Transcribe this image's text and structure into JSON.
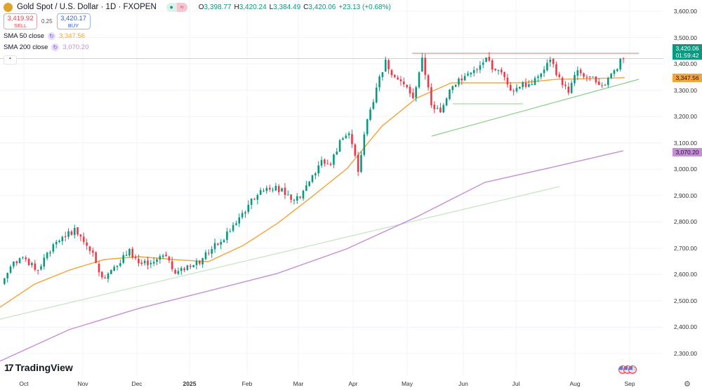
{
  "header": {
    "symbol": "Gold Spot / U.S. Dollar · 1D · FXOPEN",
    "status_dot": "●",
    "status_wave": "≈",
    "open_label": "O",
    "open": "3,398.77",
    "high_label": "H",
    "high": "3,420.24",
    "low_label": "L",
    "low": "3,384.49",
    "close_label": "C",
    "close": "3,420.06",
    "change": "+23.13 (+0.68%)"
  },
  "trade": {
    "sell_price": "3,419.92",
    "sell_label": "SELL",
    "spread": "0.25",
    "buy_price": "3,420.17",
    "buy_label": "BUY"
  },
  "indicators": [
    {
      "label": "SMA 50 close",
      "value": "3,347.56",
      "color": "#f2a33a"
    },
    {
      "label": "SMA 200 close",
      "value": "3,070.20",
      "color": "#c38fd4"
    }
  ],
  "collapse_icon": "⌃",
  "price_tags": {
    "last_price": "3,420.06",
    "countdown": "01:59:42",
    "last_color": "#089981",
    "sma50": "3,347.56",
    "sma50_color": "#f7a33a",
    "sma200": "3,070.20",
    "sma200_color": "#c48fd6"
  },
  "brand": {
    "mark": "17",
    "name": "TradingView"
  },
  "settings_icon": "⚙",
  "chart_data": {
    "type": "candlestick",
    "price_axis": [
      "3,600.00",
      "3,500.00",
      "3,400.00",
      "3,300.00",
      "3,200.00",
      "3,100.00",
      "3,000.00",
      "2,900.00",
      "2,800.00",
      "2,700.00",
      "2,600.00",
      "2,500.00",
      "2,400.00",
      "2,300.00"
    ],
    "ylim": [
      2300,
      3600
    ],
    "time_axis": [
      "Oct",
      "Nov",
      "Dec",
      "2025",
      "Feb",
      "Mar",
      "Apr",
      "May",
      "Jun",
      "Jul",
      "Aug",
      "Sep"
    ],
    "approx_closes": [
      2564,
      2630,
      2662,
      2636,
      2617,
      2683,
      2724,
      2742,
      2777,
      2724,
      2683,
      2590,
      2617,
      2643,
      2697,
      2643,
      2636,
      2657,
      2670,
      2604,
      2617,
      2636,
      2662,
      2697,
      2724,
      2764,
      2817,
      2865,
      2902,
      2929,
      2937,
      2902,
      2883,
      2918,
      2977,
      3035,
      3016,
      3110,
      3136,
      2990,
      3190,
      3310,
      3416,
      3350,
      3323,
      3270,
      3424,
      3243,
      3216,
      3302,
      3344,
      3363,
      3376,
      3424,
      3376,
      3350,
      3296,
      3330,
      3323,
      3363,
      3416,
      3350,
      3290,
      3376,
      3350,
      3330,
      3320,
      3376,
      3420.06
    ],
    "sma50": [
      2476,
      2564,
      2617,
      2657,
      2668,
      2657,
      2649,
      2710,
      2795,
      2897,
      3003,
      3163,
      3270,
      3328,
      3328,
      3328,
      3341,
      3344,
      3347.56
    ],
    "sma200": [
      2271,
      2391,
      2471,
      2537,
      2604,
      2697,
      2817,
      2950,
      3009,
      3070.2
    ],
    "colors": {
      "up": "#089981",
      "down": "#f23645",
      "sma50": "#f2a33a",
      "sma200": "#c48fd6",
      "trendline": "#9dd49a",
      "resistance": "#f08c8c"
    }
  }
}
